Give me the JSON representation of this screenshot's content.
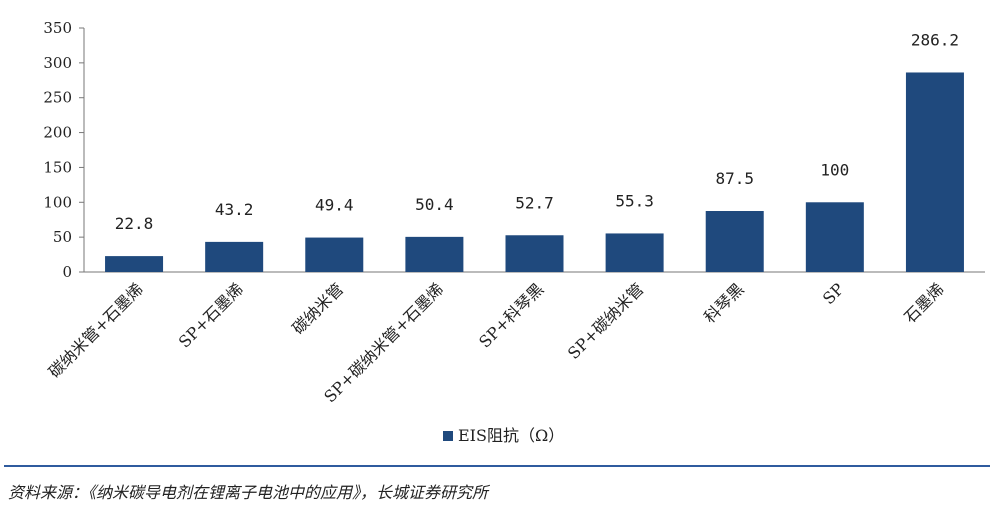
{
  "chart_data": {
    "type": "bar",
    "categories": [
      "碳纳米管+石墨烯",
      "SP+石墨烯",
      "碳纳米管",
      "SP+碳纳米管+石墨烯",
      "SP+科琴黑",
      "SP+碳纳米管",
      "科琴黑",
      "SP",
      "石墨烯"
    ],
    "series": [
      {
        "name": "EIS阻抗（Ω）",
        "values": [
          22.8,
          43.2,
          49.4,
          50.4,
          52.7,
          55.3,
          87.5,
          100,
          286.2
        ]
      }
    ],
    "value_labels": [
      "22.8",
      "43.2",
      "49.4",
      "50.4",
      "52.7",
      "55.3",
      "87.5",
      "100",
      "286.2"
    ],
    "ylim": [
      0,
      350
    ],
    "yticks": [
      "0",
      "50",
      "100",
      "150",
      "200",
      "250",
      "300",
      "350"
    ],
    "grid": false,
    "legend_position": "bottom-center",
    "bar_color": "#1f497d"
  },
  "source": "资料来源：《纳米碳导电剂在锂离子电池中的应用》，长城证券研究所",
  "footer_rule_color": "#2f5b9e"
}
